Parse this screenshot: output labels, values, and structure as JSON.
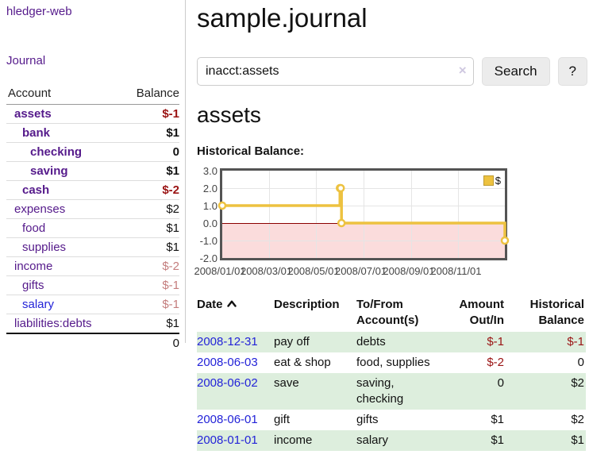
{
  "colors": {
    "purple": "#551a8b",
    "link-blue": "#2323d8",
    "neg-dark": "#9a1313",
    "neg-faded": "#c47d7d",
    "row-green": "#ddeedd",
    "chart-gold": "#edc240",
    "chart-pink": "#fbdcdc",
    "zero-red": "#8b0000"
  },
  "sidebar": {
    "brand": "hledger-web",
    "nav": {
      "journal": "Journal"
    },
    "table": {
      "account_header": "Account",
      "balance_header": "Balance",
      "accounts": [
        {
          "name": "assets",
          "balance": "$-1",
          "indent": 1,
          "bold": true,
          "link_color": "purple",
          "balance_color": "neg"
        },
        {
          "name": "bank",
          "balance": "$1",
          "indent": 2,
          "bold": true,
          "link_color": "purple",
          "balance_color": "pos"
        },
        {
          "name": "checking",
          "balance": "0",
          "indent": 3,
          "bold": true,
          "link_color": "purple",
          "balance_color": "pos"
        },
        {
          "name": "saving",
          "balance": "$1",
          "indent": 3,
          "bold": true,
          "link_color": "purple",
          "balance_color": "pos"
        },
        {
          "name": "cash",
          "balance": "$-2",
          "indent": 2,
          "bold": true,
          "link_color": "purple",
          "balance_color": "neg"
        },
        {
          "name": "expenses",
          "balance": "$2",
          "indent": 1,
          "bold": false,
          "link_color": "purple",
          "balance_color": "pos"
        },
        {
          "name": "food",
          "balance": "$1",
          "indent": 2,
          "bold": false,
          "link_color": "purple",
          "balance_color": "pos"
        },
        {
          "name": "supplies",
          "balance": "$1",
          "indent": 2,
          "bold": false,
          "link_color": "purple",
          "balance_color": "pos"
        },
        {
          "name": "income",
          "balance": "$-2",
          "indent": 1,
          "bold": false,
          "link_color": "purple",
          "balance_color": "faded"
        },
        {
          "name": "gifts",
          "balance": "$-1",
          "indent": 2,
          "bold": false,
          "link_color": "purple",
          "balance_color": "faded"
        },
        {
          "name": "salary",
          "balance": "$-1",
          "indent": 2,
          "bold": false,
          "link_color": "blue",
          "balance_color": "faded"
        },
        {
          "name": "liabilities:debts",
          "balance": "$1",
          "indent": 1,
          "bold": false,
          "link_color": "purple",
          "balance_color": "pos"
        }
      ],
      "total": "0"
    }
  },
  "main": {
    "title": "sample.journal",
    "search": {
      "value": "inacct:assets",
      "clear": "×",
      "button_label": "Search",
      "help_label": "?"
    },
    "heading": "assets",
    "chart_title": "Historical Balance:"
  },
  "chart_data": {
    "type": "line",
    "title": "Historical Balance",
    "series": [
      {
        "name": "$",
        "color": "#edc240",
        "step": true,
        "points": [
          [
            "2008-01-01",
            1
          ],
          [
            "2008-06-01",
            2
          ],
          [
            "2008-06-02",
            2
          ],
          [
            "2008-06-03",
            0
          ],
          [
            "2008-12-31",
            -1
          ]
        ]
      }
    ],
    "x_ticks": [
      "2008/01/01",
      "2008/03/01",
      "2008/05/01",
      "2008/07/01",
      "2008/09/01",
      "2008/11/01"
    ],
    "y_ticks": [
      "3.0",
      "2.0",
      "1.0",
      "0.0",
      "-1.0",
      "-2.0"
    ],
    "xlim": [
      "2008/01/01",
      "2008/12/31"
    ],
    "ylim": [
      -2,
      3
    ],
    "grid": true,
    "legend_position": "top-right",
    "negative_region_below": 0
  },
  "register": {
    "headers": [
      "Date",
      "Description",
      "To/From Account(s)",
      "Amount Out/In",
      "Historical Balance"
    ],
    "sort": {
      "column": "Date",
      "direction": "ascending"
    },
    "rows": [
      {
        "date": "2008-12-31",
        "description": "pay off",
        "accounts": "debts",
        "amount": "$-1",
        "amount_negative": true,
        "balance": "$-1",
        "balance_negative": true
      },
      {
        "date": "2008-06-03",
        "description": "eat & shop",
        "accounts": "food, supplies",
        "amount": "$-2",
        "amount_negative": true,
        "balance": "0",
        "balance_negative": false
      },
      {
        "date": "2008-06-02",
        "description": "save",
        "accounts": "saving, checking",
        "amount": "0",
        "amount_negative": false,
        "balance": "$2",
        "balance_negative": false
      },
      {
        "date": "2008-06-01",
        "description": "gift",
        "accounts": "gifts",
        "amount": "$1",
        "amount_negative": false,
        "balance": "$2",
        "balance_negative": false
      },
      {
        "date": "2008-01-01",
        "description": "income",
        "accounts": "salary",
        "amount": "$1",
        "amount_negative": false,
        "balance": "$1",
        "balance_negative": false
      }
    ]
  }
}
